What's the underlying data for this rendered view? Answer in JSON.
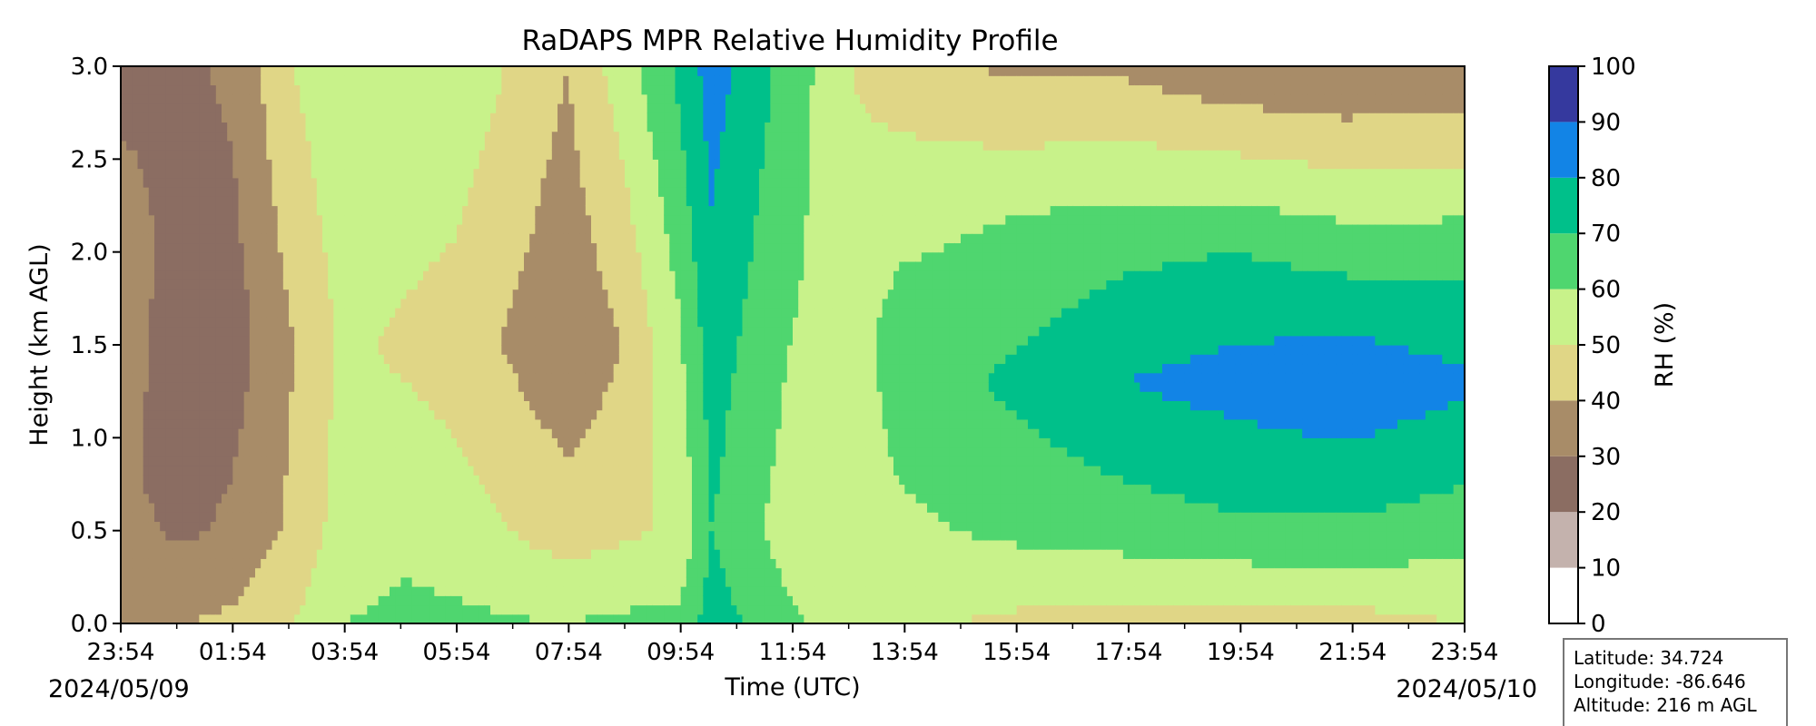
{
  "chart_data": {
    "type": "heatmap",
    "title": "RaDAPS MPR Relative Humidity Profile",
    "xlabel": "Time (UTC)",
    "ylabel": "Height (km AGL)",
    "x_tick_labels": [
      "23:54",
      "01:54",
      "03:54",
      "05:54",
      "07:54",
      "09:54",
      "11:54",
      "13:54",
      "15:54",
      "17:54",
      "19:54",
      "21:54",
      "23:54"
    ],
    "x_hours": [
      -0.1,
      24.0
    ],
    "date_start": "2024/05/09",
    "date_end": "2024/05/10",
    "y_ticks": [
      0.0,
      0.5,
      1.0,
      1.5,
      2.0,
      2.5,
      3.0
    ],
    "y_tick_labels": [
      "0.0",
      "0.5",
      "1.0",
      "1.5",
      "2.0",
      "2.5",
      "3.0"
    ],
    "ylim": [
      0.0,
      3.0
    ],
    "colorbar": {
      "label": "RH (%)",
      "ticks": [
        "0",
        "10",
        "20",
        "30",
        "40",
        "50",
        "60",
        "70",
        "80",
        "90",
        "100"
      ],
      "levels": [
        0,
        10,
        20,
        30,
        40,
        50,
        60,
        70,
        80,
        90,
        100
      ],
      "colors": [
        "#ffffff",
        "#c4b2ad",
        "#8b6d62",
        "#a88c68",
        "#e0d686",
        "#c8f28a",
        "#4fd66f",
        "#00c08a",
        "#1284e6",
        "#35399e"
      ]
    },
    "columns": [
      {
        "x": "23:54",
        "rh_by_height": [
          [
            0.0,
            40
          ],
          [
            0.7,
            32
          ],
          [
            2.0,
            38
          ],
          [
            3.0,
            25
          ]
        ]
      },
      {
        "x": "01:00",
        "rh_by_height": [
          [
            0.0,
            40
          ],
          [
            0.5,
            28
          ],
          [
            1.5,
            22
          ],
          [
            3.0,
            28
          ]
        ]
      },
      {
        "x": "01:54",
        "rh_by_height": [
          [
            0.0,
            42
          ],
          [
            0.5,
            32
          ],
          [
            1.5,
            25
          ],
          [
            3.0,
            32
          ]
        ]
      },
      {
        "x": "03:00",
        "rh_by_height": [
          [
            0.0,
            50
          ],
          [
            0.5,
            42
          ],
          [
            1.5,
            40
          ],
          [
            3.0,
            50
          ]
        ]
      },
      {
        "x": "03:54",
        "rh_by_height": [
          [
            0.0,
            60
          ],
          [
            0.5,
            55
          ],
          [
            1.5,
            52
          ],
          [
            3.0,
            58
          ]
        ]
      },
      {
        "x": "05:00",
        "rh_by_height": [
          [
            0.0,
            62
          ],
          [
            0.5,
            58
          ],
          [
            1.5,
            48
          ],
          [
            3.0,
            60
          ]
        ]
      },
      {
        "x": "05:54",
        "rh_by_height": [
          [
            0.0,
            62
          ],
          [
            0.5,
            55
          ],
          [
            1.5,
            45
          ],
          [
            3.0,
            58
          ]
        ]
      },
      {
        "x": "07:54",
        "rh_by_height": [
          [
            0.0,
            60
          ],
          [
            0.5,
            45
          ],
          [
            1.5,
            32
          ],
          [
            3.0,
            40
          ]
        ]
      },
      {
        "x": "08:54",
        "rh_by_height": [
          [
            0.0,
            62
          ],
          [
            0.5,
            48
          ],
          [
            1.5,
            40
          ],
          [
            3.0,
            55
          ]
        ]
      },
      {
        "x": "09:54",
        "rh_by_height": [
          [
            0.0,
            62
          ],
          [
            0.5,
            52
          ],
          [
            1.5,
            58
          ],
          [
            3.0,
            72
          ]
        ]
      },
      {
        "x": "10:30",
        "rh_by_height": [
          [
            0.0,
            75
          ],
          [
            0.5,
            70
          ],
          [
            1.5,
            75
          ],
          [
            3.0,
            85
          ]
        ]
      },
      {
        "x": "11:54",
        "rh_by_height": [
          [
            0.0,
            62
          ],
          [
            0.5,
            55
          ],
          [
            1.5,
            60
          ],
          [
            3.0,
            66
          ]
        ]
      },
      {
        "x": "13:00",
        "rh_by_height": [
          [
            0.0,
            55
          ],
          [
            0.5,
            55
          ],
          [
            1.5,
            55
          ],
          [
            3.0,
            50
          ]
        ]
      },
      {
        "x": "13:54",
        "rh_by_height": [
          [
            0.0,
            52
          ],
          [
            0.5,
            58
          ],
          [
            1.5,
            66
          ],
          [
            2.5,
            52
          ],
          [
            3.0,
            45
          ]
        ]
      },
      {
        "x": "15:54",
        "rh_by_height": [
          [
            0.0,
            48
          ],
          [
            0.5,
            62
          ],
          [
            1.3,
            72
          ],
          [
            2.2,
            60
          ],
          [
            3.0,
            38
          ]
        ]
      },
      {
        "x": "17:54",
        "rh_by_height": [
          [
            0.0,
            45
          ],
          [
            0.5,
            65
          ],
          [
            1.3,
            80
          ],
          [
            2.0,
            68
          ],
          [
            3.0,
            38
          ]
        ]
      },
      {
        "x": "19:54",
        "rh_by_height": [
          [
            0.0,
            45
          ],
          [
            0.5,
            68
          ],
          [
            1.3,
            84
          ],
          [
            2.0,
            70
          ],
          [
            3.0,
            32
          ]
        ]
      },
      {
        "x": "21:54",
        "rh_by_height": [
          [
            0.0,
            46
          ],
          [
            0.5,
            68
          ],
          [
            1.3,
            88
          ],
          [
            2.0,
            66
          ],
          [
            3.0,
            30
          ]
        ]
      },
      {
        "x": "23:54",
        "rh_by_height": [
          [
            0.0,
            50
          ],
          [
            0.5,
            65
          ],
          [
            1.3,
            82
          ],
          [
            2.0,
            66
          ],
          [
            3.0,
            32
          ]
        ]
      }
    ]
  },
  "info_box": {
    "latitude": "Latitude: 34.724",
    "longitude": "Longitude: -86.646",
    "altitude": "Altitude: 216 m AGL"
  }
}
